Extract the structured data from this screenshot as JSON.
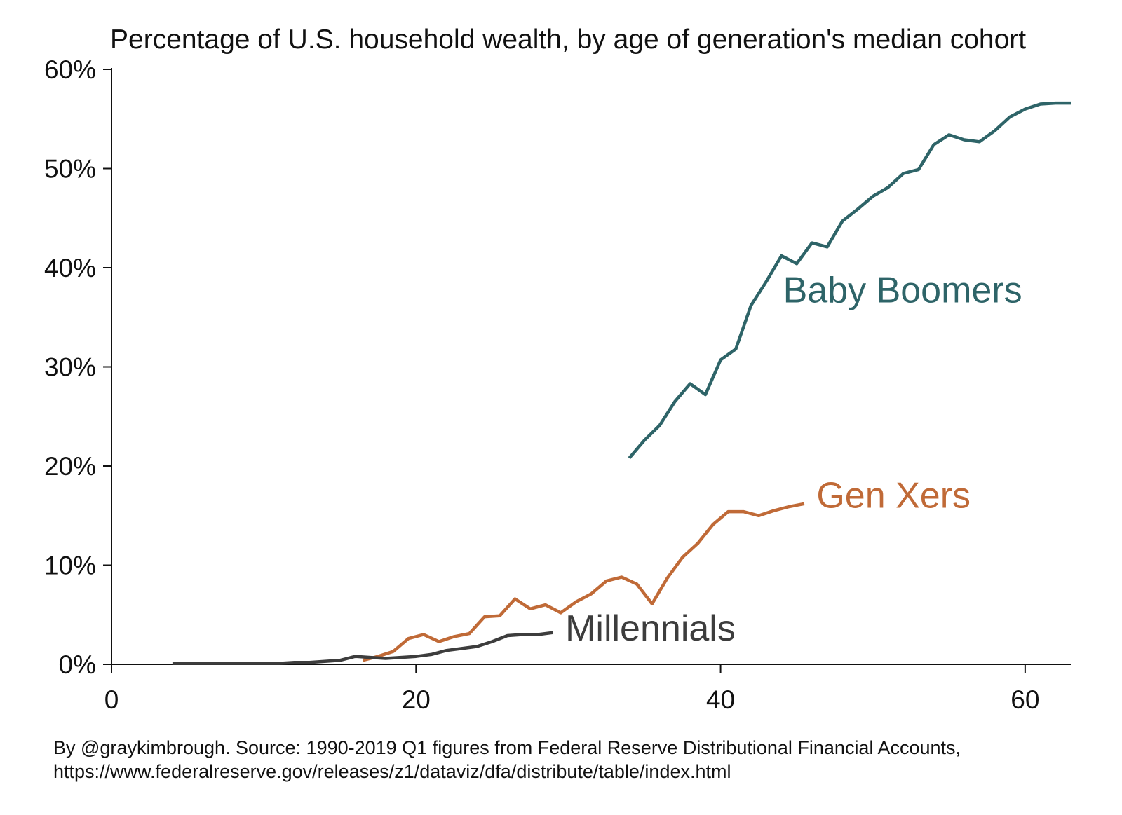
{
  "chart_data": {
    "type": "line",
    "title": "Percentage of U.S. household wealth, by age of generation's median cohort",
    "xlabel": "",
    "ylabel": "",
    "xlim": [
      0,
      63
    ],
    "ylim": [
      0,
      60
    ],
    "x_ticks": [
      0,
      20,
      40,
      60
    ],
    "y_ticks": [
      0,
      10,
      20,
      30,
      40,
      50,
      60
    ],
    "y_tick_labels": [
      "0%",
      "10%",
      "20%",
      "30%",
      "40%",
      "50%",
      "60%"
    ],
    "grid": false,
    "legend": "direct labels",
    "series": [
      {
        "name": "Baby Boomers",
        "color": "#2e6468",
        "label_at": [
          44.1,
          36.5
        ],
        "points": [
          [
            34,
            20.8
          ],
          [
            35,
            22.6
          ],
          [
            36,
            24.1
          ],
          [
            37,
            26.5
          ],
          [
            38,
            28.3
          ],
          [
            39,
            27.2
          ],
          [
            40,
            30.7
          ],
          [
            41,
            31.8
          ],
          [
            42,
            36.2
          ],
          [
            43,
            38.6
          ],
          [
            44,
            41.2
          ],
          [
            45,
            40.4
          ],
          [
            46,
            42.5
          ],
          [
            47,
            42.1
          ],
          [
            48,
            44.7
          ],
          [
            49,
            45.9
          ],
          [
            50,
            47.2
          ],
          [
            51,
            48.1
          ],
          [
            52,
            49.5
          ],
          [
            53,
            49.9
          ],
          [
            54,
            52.4
          ],
          [
            55,
            53.4
          ],
          [
            56,
            52.9
          ],
          [
            57,
            52.7
          ],
          [
            58,
            53.8
          ],
          [
            59,
            55.2
          ],
          [
            60,
            56.0
          ],
          [
            61,
            56.5
          ],
          [
            62,
            56.6
          ],
          [
            63,
            56.6
          ]
        ]
      },
      {
        "name": "Gen Xers",
        "color": "#c06a37",
        "label_at": [
          46.3,
          15.8
        ],
        "points": [
          [
            16.5,
            0.4
          ],
          [
            17.5,
            0.8
          ],
          [
            18.5,
            1.3
          ],
          [
            19.5,
            2.6
          ],
          [
            20.5,
            3.0
          ],
          [
            21.5,
            2.3
          ],
          [
            22.5,
            2.8
          ],
          [
            23.5,
            3.1
          ],
          [
            24.5,
            4.8
          ],
          [
            25.5,
            4.9
          ],
          [
            26.5,
            6.6
          ],
          [
            27.5,
            5.6
          ],
          [
            28.5,
            6.0
          ],
          [
            29.5,
            5.2
          ],
          [
            30.5,
            6.3
          ],
          [
            31.5,
            7.1
          ],
          [
            32.5,
            8.4
          ],
          [
            33.5,
            8.8
          ],
          [
            34.5,
            8.1
          ],
          [
            35.5,
            6.1
          ],
          [
            36.5,
            8.7
          ],
          [
            37.5,
            10.8
          ],
          [
            38.5,
            12.2
          ],
          [
            39.5,
            14.1
          ],
          [
            40.5,
            15.4
          ],
          [
            41.5,
            15.4
          ],
          [
            42.5,
            15.0
          ],
          [
            43.5,
            15.5
          ],
          [
            44.5,
            15.9
          ],
          [
            45.5,
            16.2
          ]
        ]
      },
      {
        "name": "Millennials",
        "color": "#3d3d3d",
        "label_at": [
          29.8,
          2.4
        ],
        "points": [
          [
            4,
            0.1
          ],
          [
            5,
            0.1
          ],
          [
            6,
            0.1
          ],
          [
            7,
            0.1
          ],
          [
            8,
            0.1
          ],
          [
            9,
            0.1
          ],
          [
            10,
            0.1
          ],
          [
            11,
            0.1
          ],
          [
            12,
            0.2
          ],
          [
            13,
            0.2
          ],
          [
            14,
            0.3
          ],
          [
            15,
            0.4
          ],
          [
            16,
            0.8
          ],
          [
            17,
            0.7
          ],
          [
            18,
            0.6
          ],
          [
            19,
            0.7
          ],
          [
            20,
            0.8
          ],
          [
            21,
            1.0
          ],
          [
            22,
            1.4
          ],
          [
            23,
            1.6
          ],
          [
            24,
            1.8
          ],
          [
            25,
            2.3
          ],
          [
            26,
            2.9
          ],
          [
            27,
            3.0
          ],
          [
            28,
            3.0
          ],
          [
            29,
            3.2
          ]
        ]
      }
    ]
  },
  "source_note": {
    "line1": "By @graykimbrough. Source: 1990-2019 Q1 figures from Federal Reserve Distributional Financial Accounts,",
    "line2": "https://www.federalreserve.gov/releases/z1/dataviz/dfa/distribute/table/index.html"
  }
}
